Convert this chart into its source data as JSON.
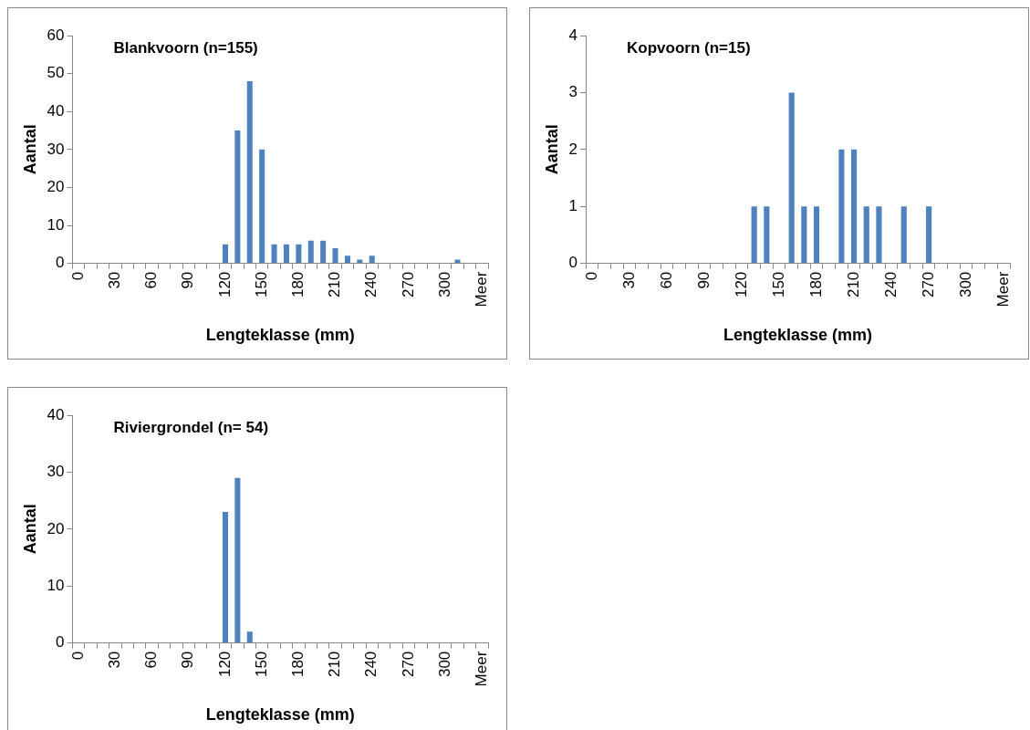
{
  "chart_data": [
    {
      "type": "bar",
      "title": "Blankvoorn (n=155)",
      "xlabel": "Lengteklasse (mm)",
      "ylabel": "Aantal",
      "color": "#4f81bd",
      "grid": false,
      "categories": [
        "0",
        null,
        null,
        "30",
        null,
        null,
        "60",
        null,
        null,
        "90",
        null,
        null,
        "120",
        null,
        null,
        "150",
        null,
        null,
        "180",
        null,
        null,
        "210",
        null,
        null,
        "240",
        null,
        null,
        "270",
        null,
        null,
        "300",
        null,
        null,
        "Meer"
      ],
      "values": [
        0,
        0,
        0,
        0,
        0,
        0,
        0,
        0,
        0,
        0,
        0,
        0,
        5,
        35,
        48,
        30,
        5,
        5,
        5,
        6,
        6,
        4,
        2,
        1,
        2,
        0,
        0,
        0,
        0,
        0,
        0,
        1,
        0,
        0
      ],
      "ylim": [
        0,
        60
      ],
      "yticks": [
        0,
        10,
        20,
        30,
        40,
        50,
        60
      ]
    },
    {
      "type": "bar",
      "title": "Kopvoorn (n=15)",
      "xlabel": "Lengteklasse (mm)",
      "ylabel": "Aantal",
      "color": "#4f81bd",
      "grid": false,
      "categories": [
        "0",
        null,
        null,
        "30",
        null,
        null,
        "60",
        null,
        null,
        "90",
        null,
        null,
        "120",
        null,
        null,
        "150",
        null,
        null,
        "180",
        null,
        null,
        "210",
        null,
        null,
        "240",
        null,
        null,
        "270",
        null,
        null,
        "300",
        null,
        null,
        "Meer"
      ],
      "values": [
        0,
        0,
        0,
        0,
        0,
        0,
        0,
        0,
        0,
        0,
        0,
        0,
        0,
        1,
        1,
        0,
        3,
        1,
        1,
        0,
        2,
        2,
        1,
        1,
        0,
        1,
        0,
        1,
        0,
        0,
        0,
        0,
        0,
        0
      ],
      "ylim": [
        0,
        4
      ],
      "yticks": [
        0,
        1,
        2,
        3,
        4
      ]
    },
    {
      "type": "bar",
      "title": "Riviergrondel (n= 54)",
      "xlabel": "Lengteklasse (mm)",
      "ylabel": "Aantal",
      "color": "#4f81bd",
      "grid": false,
      "categories": [
        "0",
        null,
        null,
        "30",
        null,
        null,
        "60",
        null,
        null,
        "90",
        null,
        null,
        "120",
        null,
        null,
        "150",
        null,
        null,
        "180",
        null,
        null,
        "210",
        null,
        null,
        "240",
        null,
        null,
        "270",
        null,
        null,
        "300",
        null,
        null,
        "Meer"
      ],
      "values": [
        0,
        0,
        0,
        0,
        0,
        0,
        0,
        0,
        0,
        0,
        0,
        0,
        23,
        29,
        2,
        0,
        0,
        0,
        0,
        0,
        0,
        0,
        0,
        0,
        0,
        0,
        0,
        0,
        0,
        0,
        0,
        0,
        0,
        0
      ],
      "ylim": [
        0,
        40
      ],
      "yticks": [
        0,
        10,
        20,
        30,
        40
      ]
    }
  ]
}
